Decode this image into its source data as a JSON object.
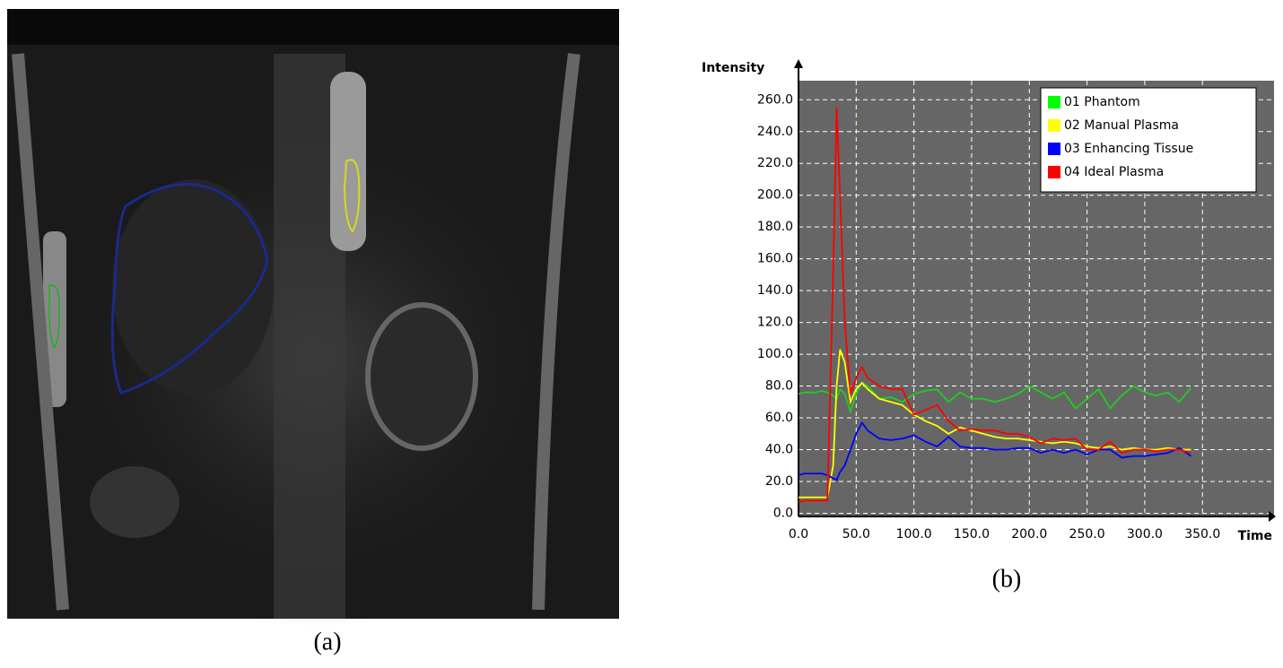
{
  "captions": {
    "a": "(a)",
    "b": "(b)"
  },
  "chart_data": {
    "type": "line",
    "ylabel": "Intensity",
    "xlabel": "Time",
    "x": [
      0,
      5,
      10,
      15,
      20,
      25,
      30,
      33,
      36,
      40,
      45,
      50,
      55,
      60,
      70,
      80,
      90,
      100,
      110,
      120,
      130,
      140,
      150,
      160,
      170,
      180,
      190,
      200,
      210,
      220,
      230,
      240,
      250,
      260,
      270,
      280,
      290,
      300,
      310,
      320,
      330,
      340
    ],
    "series": [
      {
        "name": "01 Phantom",
        "color": "#22cc22",
        "legend_color": "#00ff00",
        "values": [
          75,
          76,
          76,
          76,
          77,
          76,
          74,
          72,
          78,
          75,
          64,
          75,
          82,
          80,
          72,
          73,
          70,
          75,
          77,
          78,
          70,
          76,
          72,
          72,
          70,
          72,
          75,
          80,
          76,
          72,
          76,
          66,
          72,
          78,
          66,
          74,
          80,
          76,
          74,
          76,
          70,
          79
        ]
      },
      {
        "name": "02 Manual Plasma",
        "color": "#ffff00",
        "legend_color": "#ffff00",
        "values": [
          10,
          10,
          10,
          10,
          10,
          10,
          30,
          80,
          103,
          95,
          70,
          78,
          82,
          78,
          72,
          70,
          68,
          62,
          58,
          55,
          50,
          54,
          52,
          50,
          48,
          47,
          47,
          46,
          45,
          44,
          45,
          44,
          42,
          41,
          42,
          40,
          41,
          40,
          40,
          41,
          40,
          40
        ]
      },
      {
        "name": "03 Enhancing Tissue",
        "color": "#0000ff",
        "legend_color": "#0000ff",
        "values": [
          24,
          25,
          25,
          25,
          25,
          24,
          22,
          21,
          26,
          30,
          40,
          50,
          57,
          52,
          47,
          46,
          47,
          49,
          45,
          42,
          48,
          42,
          41,
          41,
          40,
          40,
          41,
          41,
          38,
          40,
          38,
          40,
          37,
          40,
          40,
          35,
          36,
          36,
          37,
          38,
          41,
          36
        ]
      },
      {
        "name": "04 Ideal Plasma",
        "color": "#ff0000",
        "legend_color": "#ff0000",
        "values": [
          7,
          8,
          8,
          8,
          8,
          8,
          150,
          255,
          200,
          120,
          75,
          85,
          92,
          85,
          80,
          78,
          78,
          62,
          65,
          68,
          58,
          52,
          53,
          52,
          52,
          50,
          50,
          48,
          44,
          47,
          46,
          47,
          40,
          40,
          45,
          38,
          40,
          40,
          39,
          40,
          40,
          38
        ]
      }
    ],
    "xlim": [
      0,
      412
    ],
    "ylim": [
      -2,
      272
    ],
    "xticks": [
      {
        "value": 0,
        "label": "0.0"
      },
      {
        "value": 50,
        "label": "50.0"
      },
      {
        "value": 100,
        "label": "100.0"
      },
      {
        "value": 150,
        "label": "150.0"
      },
      {
        "value": 200,
        "label": "200.0"
      },
      {
        "value": 250,
        "label": "250.0"
      },
      {
        "value": 300,
        "label": "300.0"
      },
      {
        "value": 350,
        "label": "350.0"
      }
    ],
    "yticks": [
      {
        "value": 0,
        "label": "0.0"
      },
      {
        "value": 20,
        "label": "20.0"
      },
      {
        "value": 40,
        "label": "40.0"
      },
      {
        "value": 60,
        "label": "60.0"
      },
      {
        "value": 80,
        "label": "80.0"
      },
      {
        "value": 100,
        "label": "100.0"
      },
      {
        "value": 120,
        "label": "120.0"
      },
      {
        "value": 140,
        "label": "140.0"
      },
      {
        "value": 160,
        "label": "160.0"
      },
      {
        "value": 180,
        "label": "180.0"
      },
      {
        "value": 200,
        "label": "200.0"
      },
      {
        "value": 220,
        "label": "220.0"
      },
      {
        "value": 240,
        "label": "240.0"
      },
      {
        "value": 260,
        "label": "260.0"
      }
    ],
    "grid": true,
    "legend": "upper right"
  }
}
